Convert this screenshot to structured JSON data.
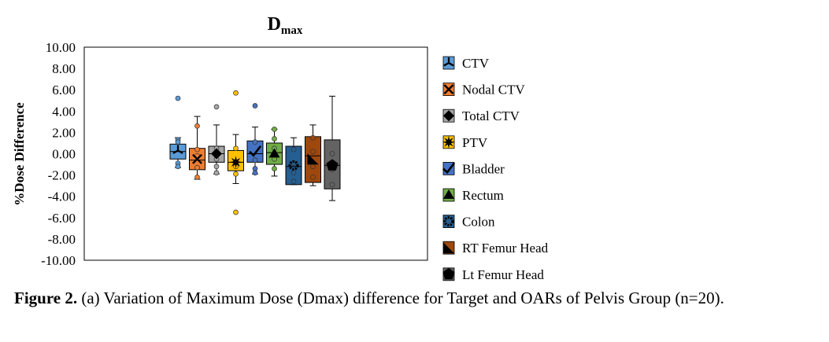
{
  "chart_data": {
    "type": "boxplot",
    "title_main": "D",
    "title_sub": "max",
    "ylabel": "%Dose Difference",
    "xlabel": "",
    "ylim": [
      -10,
      10
    ],
    "yticks": [
      "10.00",
      "8.00",
      "6.00",
      "4.00",
      "2.00",
      "0.00",
      "-2.00",
      "-4.00",
      "-6.00",
      "-8.00",
      "-10.00"
    ],
    "ytick_values": [
      10,
      8,
      6,
      4,
      2,
      0,
      -2,
      -4,
      -6,
      -8,
      -10
    ],
    "grid": false,
    "legend_position": "right",
    "series": [
      {
        "name": "CTV",
        "color": "#5b9bd5",
        "marker": "tri-star",
        "whisker_low": -1.3,
        "q1": -0.5,
        "median": 0.2,
        "q3": 0.9,
        "whisker_high": 1.5,
        "mean": 0.3,
        "points": [
          5.2,
          1.3,
          1.1,
          -0.9,
          -1.2
        ],
        "outliers": [
          5.2
        ]
      },
      {
        "name": "Nodal CTV",
        "color": "#ed7d31",
        "marker": "x",
        "whisker_low": -2.4,
        "q1": -1.5,
        "median": -0.6,
        "q3": 0.5,
        "whisker_high": 3.5,
        "mean": -0.5,
        "points": [
          2.6,
          0.4,
          -0.2,
          -1.3,
          -2.2
        ],
        "outliers": []
      },
      {
        "name": "Total CTV",
        "color": "#a5a5a5",
        "marker": "diamond",
        "whisker_low": -1.9,
        "q1": -0.8,
        "median": 0.0,
        "q3": 0.7,
        "whisker_high": 2.7,
        "mean": 0.0,
        "points": [
          4.4,
          0.5,
          -0.5,
          -1.2,
          -1.8
        ],
        "outliers": [
          4.4
        ]
      },
      {
        "name": "PTV",
        "color": "#ffc000",
        "marker": "star",
        "whisker_low": -2.8,
        "q1": -1.6,
        "median": -0.8,
        "q3": 0.3,
        "whisker_high": 1.8,
        "mean": -0.8,
        "points": [
          5.7,
          0.5,
          -1.2,
          -1.9,
          -5.5
        ],
        "outliers": [
          5.7,
          -5.5
        ]
      },
      {
        "name": "Bladder",
        "color": "#4472c4",
        "marker": "check",
        "whisker_low": -1.9,
        "q1": -0.8,
        "median": 0.0,
        "q3": 1.2,
        "whisker_high": 2.5,
        "mean": 0.2,
        "points": [
          4.5,
          1.1,
          -0.6,
          -1.4,
          -1.8
        ],
        "outliers": [
          4.5
        ]
      },
      {
        "name": "Rectum",
        "color": "#70ad47",
        "marker": "triangle",
        "whisker_low": -2.1,
        "q1": -1.0,
        "median": 0.1,
        "q3": 1.0,
        "whisker_high": 2.3,
        "mean": 0.0,
        "points": [
          2.3,
          1.4,
          0.5,
          -0.5,
          -1.4
        ],
        "outliers": []
      },
      {
        "name": "Colon",
        "color": "#255e91",
        "marker": "gear",
        "whisker_low": -2.9,
        "q1": -2.9,
        "median": -1.2,
        "q3": 0.7,
        "whisker_high": 1.5,
        "mean": -1.1,
        "points": [
          0.4,
          -0.9,
          -1.8,
          -2.6
        ],
        "outliers": []
      },
      {
        "name": "RT Femur Head",
        "color": "#9e480e",
        "marker": "half-square",
        "whisker_low": -3.0,
        "q1": -2.7,
        "median": -0.2,
        "q3": 1.6,
        "whisker_high": 2.7,
        "mean": -0.5,
        "points": [
          1.5,
          0.2,
          -1.2,
          -2.2
        ],
        "outliers": []
      },
      {
        "name": "Lt Femur Head",
        "color": "#636363",
        "marker": "pentagon",
        "whisker_low": -4.4,
        "q1": -3.3,
        "median": -1.1,
        "q3": 1.3,
        "whisker_high": 5.4,
        "mean": -1.1,
        "points": [
          0.0,
          -0.8,
          -1.5,
          -2.9
        ],
        "outliers": []
      }
    ]
  },
  "caption": {
    "label": "Figure 2.",
    "text": " (a) Variation of Maximum Dose (Dmax) difference for Target and OARs of Pelvis Group (n=20)."
  }
}
